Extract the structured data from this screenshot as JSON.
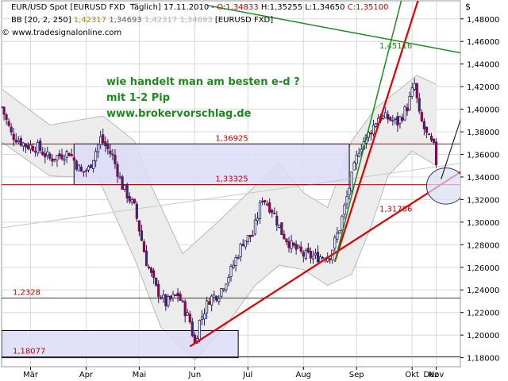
{
  "header": {
    "line1": [
      {
        "text": "EUR/USD Spot [EURUSD FXD",
        "color": "#000000"
      },
      {
        "text": "  Täglich] 17.11.2010 - ",
        "color": "#000000"
      },
      {
        "text": "O:1,34833",
        "color": "#d00000"
      },
      {
        "text": " H:1,35255 L:1,34650 ",
        "color": "#000000"
      },
      {
        "text": "C:1,35100",
        "color": "#d00000"
      }
    ],
    "line2": [
      {
        "text": "BB [20, 2, 250] ",
        "color": "#000000"
      },
      {
        "text": "1,42317 ",
        "color": "#b08a00"
      },
      {
        "text": "1,34693 ",
        "color": "#606060"
      },
      {
        "text": "1,42317 1,34693 ",
        "color": "#b0b0b0"
      },
      {
        "text": "[EURUSD FXD]",
        "color": "#000000"
      }
    ],
    "line3": "© www.tradesignalonline.com"
  },
  "annotation": {
    "line1": "wie handelt man am besten e-d ?",
    "line2": "mit 1-2 Pip",
    "line3": "www.brokervorschlag.de"
  },
  "chart_data": {
    "type": "candlestick",
    "currency_symbol": "$",
    "x_ticks": [
      "Mär",
      "Apr",
      "Mai",
      "Jun",
      "Jul",
      "Aug",
      "Sep",
      "Okt",
      "Nov",
      "Dez"
    ],
    "y_ticks": [
      "1,48000",
      "1,46000",
      "1,44000",
      "1,42000",
      "1,40000",
      "1,38000",
      "1,36000",
      "1,34000",
      "1,32000",
      "1,30000",
      "1,28000",
      "1,26000",
      "1,24000",
      "1,22000",
      "1,20000",
      "1,18000"
    ],
    "y_tick_values": [
      1.48,
      1.46,
      1.44,
      1.42,
      1.4,
      1.38,
      1.36,
      1.34,
      1.32,
      1.3,
      1.28,
      1.26,
      1.24,
      1.22,
      1.2,
      1.18
    ],
    "ylim": [
      1.172,
      1.496
    ],
    "xlim": [
      0,
      190
    ],
    "month_start_index": [
      12,
      35,
      57,
      80,
      102,
      125,
      147,
      170,
      180
    ],
    "grid": true,
    "level_labels": [
      {
        "text": "1,36925",
        "value": 1.36925
      },
      {
        "text": "1,33325",
        "value": 1.33325
      },
      {
        "text": "1,2328",
        "value": 1.2328
      },
      {
        "text": "1,18077",
        "value": 1.18077
      },
      {
        "text": "1,31786",
        "value": 1.31786
      },
      {
        "text": "1,45116",
        "value": 1.45116
      }
    ],
    "close_anchors": [
      [
        0,
        1.402
      ],
      [
        4,
        1.378
      ],
      [
        10,
        1.368
      ],
      [
        15,
        1.366
      ],
      [
        20,
        1.356
      ],
      [
        28,
        1.362
      ],
      [
        33,
        1.344
      ],
      [
        36,
        1.347
      ],
      [
        41,
        1.374
      ],
      [
        46,
        1.358
      ],
      [
        50,
        1.332
      ],
      [
        55,
        1.313
      ],
      [
        60,
        1.265
      ],
      [
        64,
        1.241
      ],
      [
        68,
        1.228
      ],
      [
        73,
        1.236
      ],
      [
        78,
        1.212
      ],
      [
        80,
        1.192
      ],
      [
        82,
        1.212
      ],
      [
        86,
        1.232
      ],
      [
        90,
        1.237
      ],
      [
        95,
        1.257
      ],
      [
        100,
        1.283
      ],
      [
        104,
        1.289
      ],
      [
        108,
        1.322
      ],
      [
        112,
        1.311
      ],
      [
        116,
        1.291
      ],
      [
        120,
        1.279
      ],
      [
        125,
        1.271
      ],
      [
        130,
        1.269
      ],
      [
        136,
        1.271
      ],
      [
        140,
        1.295
      ],
      [
        144,
        1.331
      ],
      [
        148,
        1.365
      ],
      [
        152,
        1.378
      ],
      [
        156,
        1.393
      ],
      [
        160,
        1.392
      ],
      [
        164,
        1.388
      ],
      [
        168,
        1.402
      ],
      [
        171,
        1.422
      ],
      [
        173,
        1.394
      ],
      [
        176,
        1.377
      ],
      [
        179,
        1.366
      ],
      [
        180,
        1.353
      ]
    ],
    "bollinger": {
      "upper_anchors": [
        [
          0,
          1.418
        ],
        [
          20,
          1.386
        ],
        [
          42,
          1.394
        ],
        [
          55,
          1.372
        ],
        [
          62,
          1.332
        ],
        [
          75,
          1.272
        ],
        [
          90,
          1.301
        ],
        [
          105,
          1.332
        ],
        [
          115,
          1.352
        ],
        [
          125,
          1.326
        ],
        [
          135,
          1.313
        ],
        [
          145,
          1.372
        ],
        [
          155,
          1.401
        ],
        [
          165,
          1.418
        ],
        [
          172,
          1.43
        ],
        [
          180,
          1.422
        ]
      ],
      "lower_anchors": [
        [
          0,
          1.371
        ],
        [
          20,
          1.341
        ],
        [
          40,
          1.339
        ],
        [
          55,
          1.268
        ],
        [
          66,
          1.207
        ],
        [
          80,
          1.178
        ],
        [
          92,
          1.206
        ],
        [
          105,
          1.244
        ],
        [
          115,
          1.262
        ],
        [
          125,
          1.258
        ],
        [
          135,
          1.244
        ],
        [
          145,
          1.254
        ],
        [
          153,
          1.296
        ],
        [
          160,
          1.341
        ],
        [
          170,
          1.363
        ],
        [
          180,
          1.35
        ]
      ]
    },
    "horizontal_levels": [
      1.36925,
      1.33325,
      1.2328,
      1.18077
    ],
    "long_levels": [
      {
        "from": 0,
        "to": 190,
        "start": 1.295,
        "end": 1.352
      }
    ],
    "rectangles": [
      {
        "x0": 30,
        "x1": 144,
        "y0": 1.33325,
        "y1": 1.36925
      },
      {
        "x0": 0,
        "x1": 98,
        "y0": 1.18,
        "y1": 1.204
      }
    ],
    "trend_lines": [
      {
        "color": "#e00000",
        "x0": 78,
        "y0": 1.19,
        "x1": 205,
        "y1": 1.365
      },
      {
        "color": "#e00000",
        "x0": 138,
        "y0": 1.265,
        "x1": 173,
        "y1": 1.5
      },
      {
        "color": "#1e8a1e",
        "x0": 138,
        "y0": 1.265,
        "x1": 166,
        "y1": 1.5
      },
      {
        "color": "#1e8a1e",
        "x0": 85,
        "y0": 1.492,
        "x1": 205,
        "y1": 1.444
      },
      {
        "color": "#1e8a1e",
        "x0": 196,
        "y0": 1.427,
        "x1": 215,
        "y1": 1.5
      }
    ],
    "arrow": {
      "x0": 182,
      "y0": 1.338,
      "x1": 193,
      "y1": 1.41
    },
    "ellipse": {
      "cx": 184,
      "cy": 1.332,
      "rx": 8,
      "ry": 0.016
    }
  }
}
